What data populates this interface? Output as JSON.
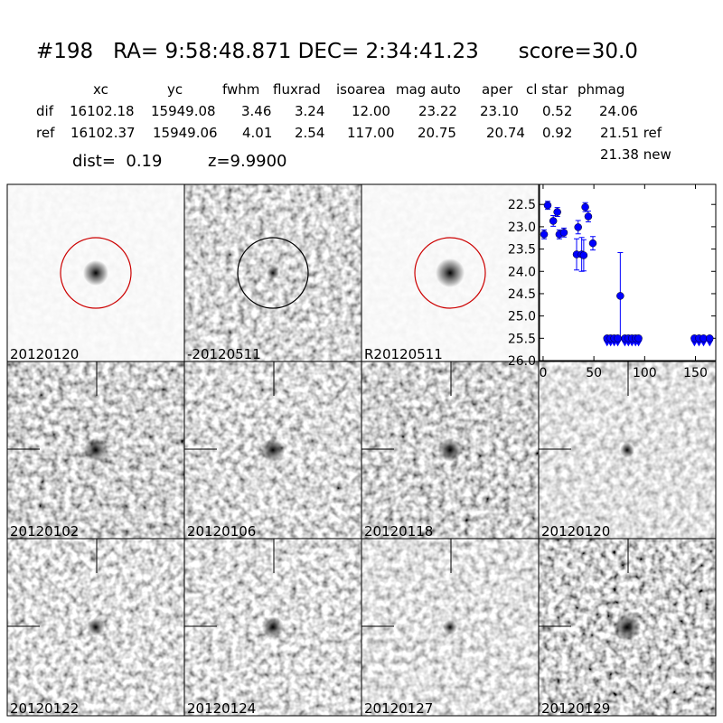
{
  "header": {
    "title": "#198   RA= 9:58:48.871 DEC= 2:34:41.23      score=30.0",
    "dist": "dist=  0.19",
    "z": "z=9.9900",
    "note": "21.38 new"
  },
  "table": {
    "columns": [
      "xc",
      "yc",
      "fwhm",
      "fluxrad",
      "isoarea",
      "mag auto",
      "aper",
      "cl star",
      "phmag"
    ],
    "rows": [
      {
        "label": "dif",
        "cells": [
          "16102.18",
          "15949.08",
          "3.46",
          "3.24",
          "12.00",
          "23.22",
          "23.10",
          "0.52",
          "24.06"
        ]
      },
      {
        "label": "ref",
        "cells": [
          "16102.37",
          "15949.06",
          "4.01",
          "2.54",
          "117.00",
          "20.75",
          "20.74",
          "0.92",
          "21.51 ref"
        ]
      }
    ]
  },
  "stamps": [
    {
      "label": "20120120"
    },
    {
      "label": "-20120511"
    },
    {
      "label": "R20120511"
    },
    {
      "label": "20120102"
    },
    {
      "label": "20120106"
    },
    {
      "label": "20120118"
    },
    {
      "label": "20120120",
      "label_color": "#ff0000"
    },
    {
      "label": "20120122"
    },
    {
      "label": "20120124"
    },
    {
      "label": "20120127"
    },
    {
      "label": "20120129"
    }
  ],
  "chart_data": {
    "type": "scatter",
    "xlim": [
      -3.5,
      170
    ],
    "ylim": [
      26.0,
      22.05
    ],
    "xticks": [
      0,
      50,
      100,
      150
    ],
    "yticks": [
      22.5,
      {
        "value": 23,
        "label": "23.0"
      },
      23.5,
      {
        "value": 24,
        "label": "24.0"
      },
      24.5,
      {
        "value": 25,
        "label": "25.0"
      },
      25.5,
      {
        "value": 26,
        "label": "26.0"
      }
    ],
    "series": [
      {
        "color": "#0000ff",
        "x": [
          1,
          4.5,
          10,
          14,
          16,
          20.5,
          33,
          34.5,
          38,
          40,
          41.5,
          44.5,
          49,
          76
        ],
        "values": [
          23.17,
          22.52,
          22.87,
          22.67,
          23.17,
          23.13,
          23.62,
          23.01,
          23.62,
          23.64,
          22.56,
          22.77,
          23.37,
          24.55
        ],
        "errors": [
          0.1,
          0.09,
          0.12,
          0.1,
          0.1,
          0.1,
          0.35,
          0.15,
          0.38,
          0.35,
          0.1,
          0.12,
          0.15,
          0.97
        ]
      },
      {
        "color": "#0000ff",
        "marker": "v",
        "x": [
          63,
          66.5,
          70,
          73.5,
          80.5,
          84,
          87.5,
          91,
          94,
          149,
          153.5,
          158,
          164
        ],
        "values": [
          25.5,
          25.5,
          25.5,
          25.5,
          25.5,
          25.5,
          25.5,
          25.5,
          25.5,
          25.5,
          25.5,
          25.5,
          25.5
        ]
      }
    ]
  }
}
